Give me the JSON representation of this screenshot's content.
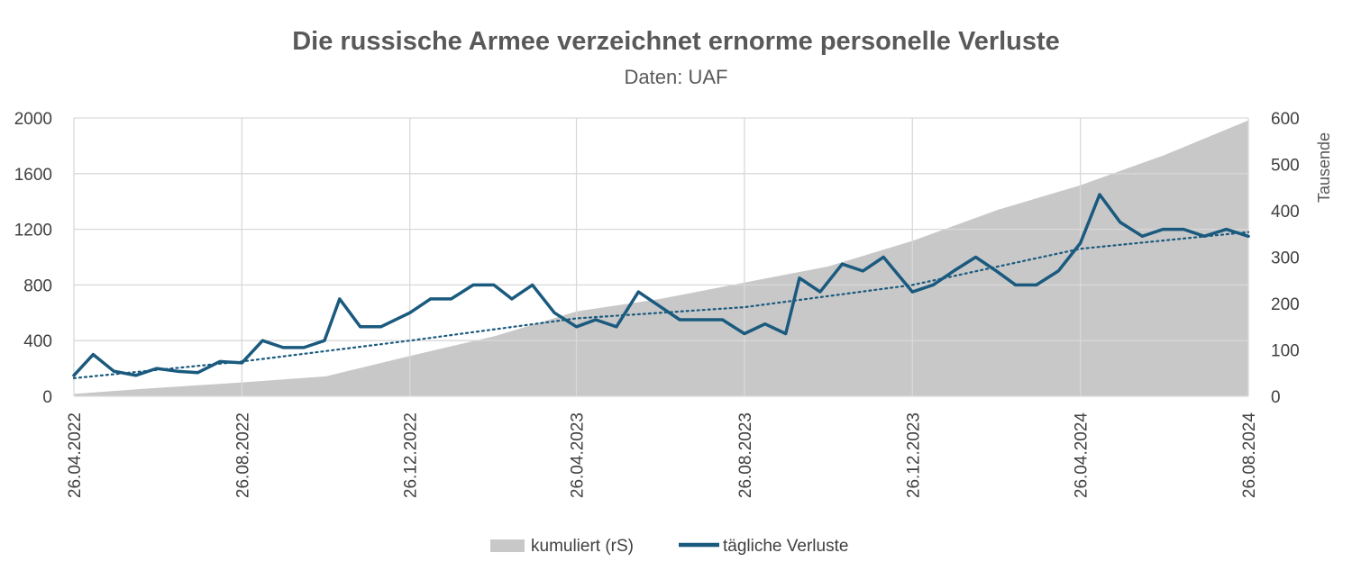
{
  "chart_data": {
    "type": "line",
    "title": "Die russische Armee verzeichnet ernorme personelle Verluste",
    "subtitle": "Daten: UAF",
    "x_tick_labels": [
      "26.04.2022",
      "26.08.2022",
      "26.12.2022",
      "26.04.2023",
      "26.08.2023",
      "26.12.2023",
      "26.04.2024",
      "26.08.2024"
    ],
    "xlim": [
      "2022-04-26",
      "2024-08-26"
    ],
    "y_left": {
      "ticks": [
        0,
        400,
        800,
        1200,
        1600,
        2000
      ],
      "labels": [
        "0",
        "400",
        "800",
        "1200",
        "1600",
        "2000"
      ],
      "lim": [
        0,
        2000
      ]
    },
    "y_right": {
      "ticks": [
        0,
        100,
        200,
        300,
        400,
        500,
        600
      ],
      "labels": [
        "0",
        "100",
        "200",
        "300",
        "400",
        "500",
        "600"
      ],
      "lim": [
        0,
        600
      ],
      "title": "Tausende"
    },
    "grid": true,
    "legend_position": "bottom",
    "series": [
      {
        "name": "kumuliert (rS)",
        "type": "area",
        "axis": "right",
        "unit": "Tausende",
        "color": "#c8c8c8",
        "points": [
          {
            "x": "2022-04-26",
            "y": 5
          },
          {
            "x": "2022-06-15",
            "y": 16
          },
          {
            "x": "2022-08-26",
            "y": 30
          },
          {
            "x": "2022-10-26",
            "y": 43
          },
          {
            "x": "2022-12-26",
            "y": 87
          },
          {
            "x": "2023-02-26",
            "y": 130
          },
          {
            "x": "2023-04-26",
            "y": 183
          },
          {
            "x": "2023-06-26",
            "y": 210
          },
          {
            "x": "2023-08-26",
            "y": 245
          },
          {
            "x": "2023-10-26",
            "y": 280
          },
          {
            "x": "2023-12-26",
            "y": 335
          },
          {
            "x": "2024-02-26",
            "y": 402
          },
          {
            "x": "2024-04-26",
            "y": 455
          },
          {
            "x": "2024-06-26",
            "y": 520
          },
          {
            "x": "2024-08-26",
            "y": 595
          }
        ]
      },
      {
        "name": "tägliche Verluste",
        "type": "line",
        "axis": "left",
        "color": "#1a5a7e",
        "points": [
          {
            "x": "2022-04-26",
            "y": 150
          },
          {
            "x": "2022-05-10",
            "y": 300
          },
          {
            "x": "2022-05-25",
            "y": 180
          },
          {
            "x": "2022-06-10",
            "y": 150
          },
          {
            "x": "2022-06-25",
            "y": 200
          },
          {
            "x": "2022-07-10",
            "y": 180
          },
          {
            "x": "2022-07-25",
            "y": 170
          },
          {
            "x": "2022-08-10",
            "y": 250
          },
          {
            "x": "2022-08-26",
            "y": 240
          },
          {
            "x": "2022-09-10",
            "y": 400
          },
          {
            "x": "2022-09-25",
            "y": 350
          },
          {
            "x": "2022-10-10",
            "y": 350
          },
          {
            "x": "2022-10-25",
            "y": 400
          },
          {
            "x": "2022-11-05",
            "y": 700
          },
          {
            "x": "2022-11-20",
            "y": 500
          },
          {
            "x": "2022-12-05",
            "y": 500
          },
          {
            "x": "2022-12-26",
            "y": 600
          },
          {
            "x": "2023-01-10",
            "y": 700
          },
          {
            "x": "2023-01-25",
            "y": 700
          },
          {
            "x": "2023-02-10",
            "y": 800
          },
          {
            "x": "2023-02-25",
            "y": 800
          },
          {
            "x": "2023-03-10",
            "y": 700
          },
          {
            "x": "2023-03-25",
            "y": 800
          },
          {
            "x": "2023-04-10",
            "y": 600
          },
          {
            "x": "2023-04-26",
            "y": 500
          },
          {
            "x": "2023-05-10",
            "y": 550
          },
          {
            "x": "2023-05-25",
            "y": 500
          },
          {
            "x": "2023-06-10",
            "y": 750
          },
          {
            "x": "2023-06-25",
            "y": 650
          },
          {
            "x": "2023-07-10",
            "y": 550
          },
          {
            "x": "2023-07-25",
            "y": 550
          },
          {
            "x": "2023-08-10",
            "y": 550
          },
          {
            "x": "2023-08-26",
            "y": 450
          },
          {
            "x": "2023-09-10",
            "y": 520
          },
          {
            "x": "2023-09-25",
            "y": 450
          },
          {
            "x": "2023-10-05",
            "y": 850
          },
          {
            "x": "2023-10-20",
            "y": 750
          },
          {
            "x": "2023-11-05",
            "y": 950
          },
          {
            "x": "2023-11-20",
            "y": 900
          },
          {
            "x": "2023-12-05",
            "y": 1000
          },
          {
            "x": "2023-12-26",
            "y": 750
          },
          {
            "x": "2024-01-10",
            "y": 800
          },
          {
            "x": "2024-01-25",
            "y": 900
          },
          {
            "x": "2024-02-10",
            "y": 1000
          },
          {
            "x": "2024-02-25",
            "y": 900
          },
          {
            "x": "2024-03-10",
            "y": 800
          },
          {
            "x": "2024-03-25",
            "y": 800
          },
          {
            "x": "2024-04-10",
            "y": 900
          },
          {
            "x": "2024-04-26",
            "y": 1100
          },
          {
            "x": "2024-05-10",
            "y": 1450
          },
          {
            "x": "2024-05-25",
            "y": 1250
          },
          {
            "x": "2024-06-10",
            "y": 1150
          },
          {
            "x": "2024-06-25",
            "y": 1200
          },
          {
            "x": "2024-07-10",
            "y": 1200
          },
          {
            "x": "2024-07-25",
            "y": 1150
          },
          {
            "x": "2024-08-10",
            "y": 1200
          },
          {
            "x": "2024-08-26",
            "y": 1150
          }
        ]
      },
      {
        "type": "trendline",
        "axis": "left",
        "color": "#1a5a7e",
        "style": "dotted",
        "points": [
          {
            "x": "2022-04-26",
            "y": 130
          },
          {
            "x": "2022-08-26",
            "y": 250
          },
          {
            "x": "2022-12-26",
            "y": 400
          },
          {
            "x": "2023-04-26",
            "y": 560
          },
          {
            "x": "2023-08-26",
            "y": 640
          },
          {
            "x": "2023-12-26",
            "y": 800
          },
          {
            "x": "2024-04-26",
            "y": 1060
          },
          {
            "x": "2024-08-26",
            "y": 1180
          }
        ]
      }
    ]
  },
  "legend": {
    "items": [
      {
        "label": "kumuliert (rS)",
        "color": "#c8c8c8",
        "shape": "box"
      },
      {
        "label": "tägliche Verluste",
        "color": "#1a5a7e",
        "shape": "line"
      }
    ]
  }
}
